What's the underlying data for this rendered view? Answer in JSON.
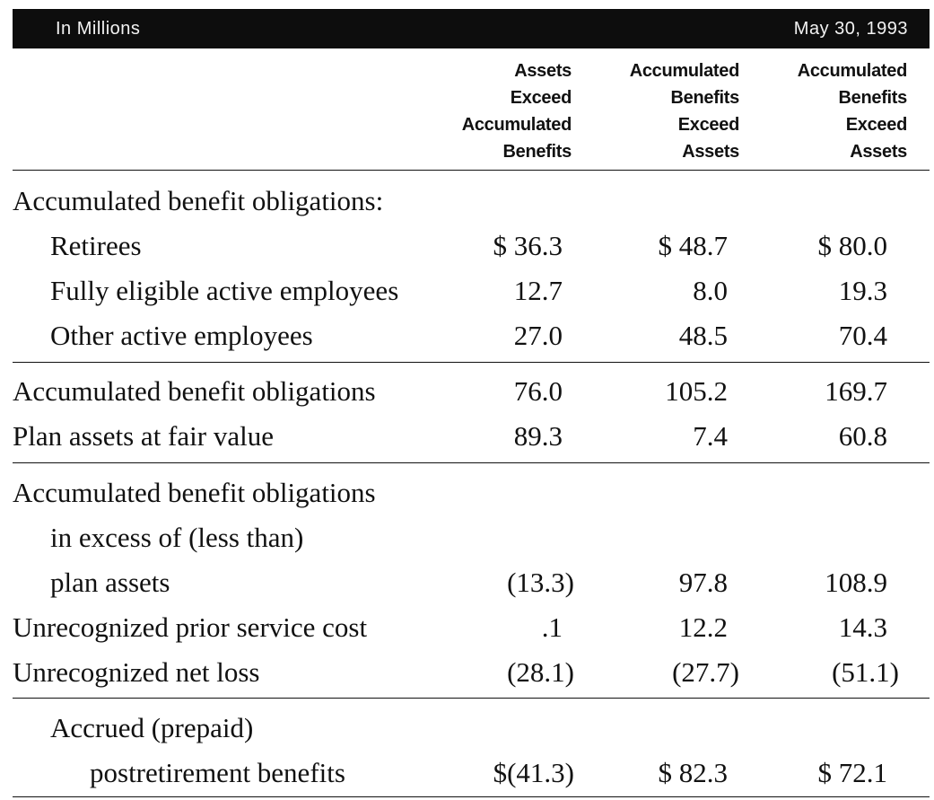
{
  "header": {
    "left": "In Millions",
    "right": "May 30, 1993"
  },
  "columns": [
    {
      "lines": [
        "Assets",
        "Exceed",
        "Accumulated",
        "Benefits"
      ]
    },
    {
      "lines": [
        "Accumulated",
        "Benefits",
        "Exceed",
        "Assets"
      ]
    },
    {
      "lines": [
        "Accumulated",
        "Benefits",
        "Exceed",
        "Assets"
      ]
    }
  ],
  "rows": [
    {
      "label": "Accumulated benefit obligations:",
      "values": [
        "",
        "",
        ""
      ]
    },
    {
      "label": "Retirees",
      "values": [
        "$ 36.3",
        "$ 48.7",
        "$ 80.0"
      ]
    },
    {
      "label": "Fully eligible active employees",
      "values": [
        "12.7",
        "8.0",
        "19.3"
      ]
    },
    {
      "label": "Other active employees",
      "values": [
        "27.0",
        "48.5",
        "70.4"
      ]
    },
    {
      "label": "Accumulated benefit obligations",
      "values": [
        "76.0",
        "105.2",
        "169.7"
      ]
    },
    {
      "label": "Plan assets at fair value",
      "values": [
        "89.3",
        "7.4",
        "60.8"
      ]
    },
    {
      "label": "Accumulated benefit obligations",
      "values": [
        "",
        "",
        ""
      ]
    },
    {
      "label": "in excess of (less than)",
      "values": [
        "",
        "",
        ""
      ]
    },
    {
      "label": "plan assets",
      "values": [
        "(13.3)",
        "97.8",
        "108.9"
      ]
    },
    {
      "label": "Unrecognized prior service cost",
      "values": [
        ".1",
        "12.2",
        "14.3"
      ]
    },
    {
      "label": "Unrecognized net loss",
      "values": [
        "(28.1)",
        "(27.7)",
        "(51.1)"
      ]
    },
    {
      "label": "Accrued (prepaid)",
      "values": [
        "",
        "",
        ""
      ]
    },
    {
      "label": "postretirement benefits",
      "values": [
        "$(41.3)",
        "$ 82.3",
        "$ 72.1"
      ]
    }
  ]
}
